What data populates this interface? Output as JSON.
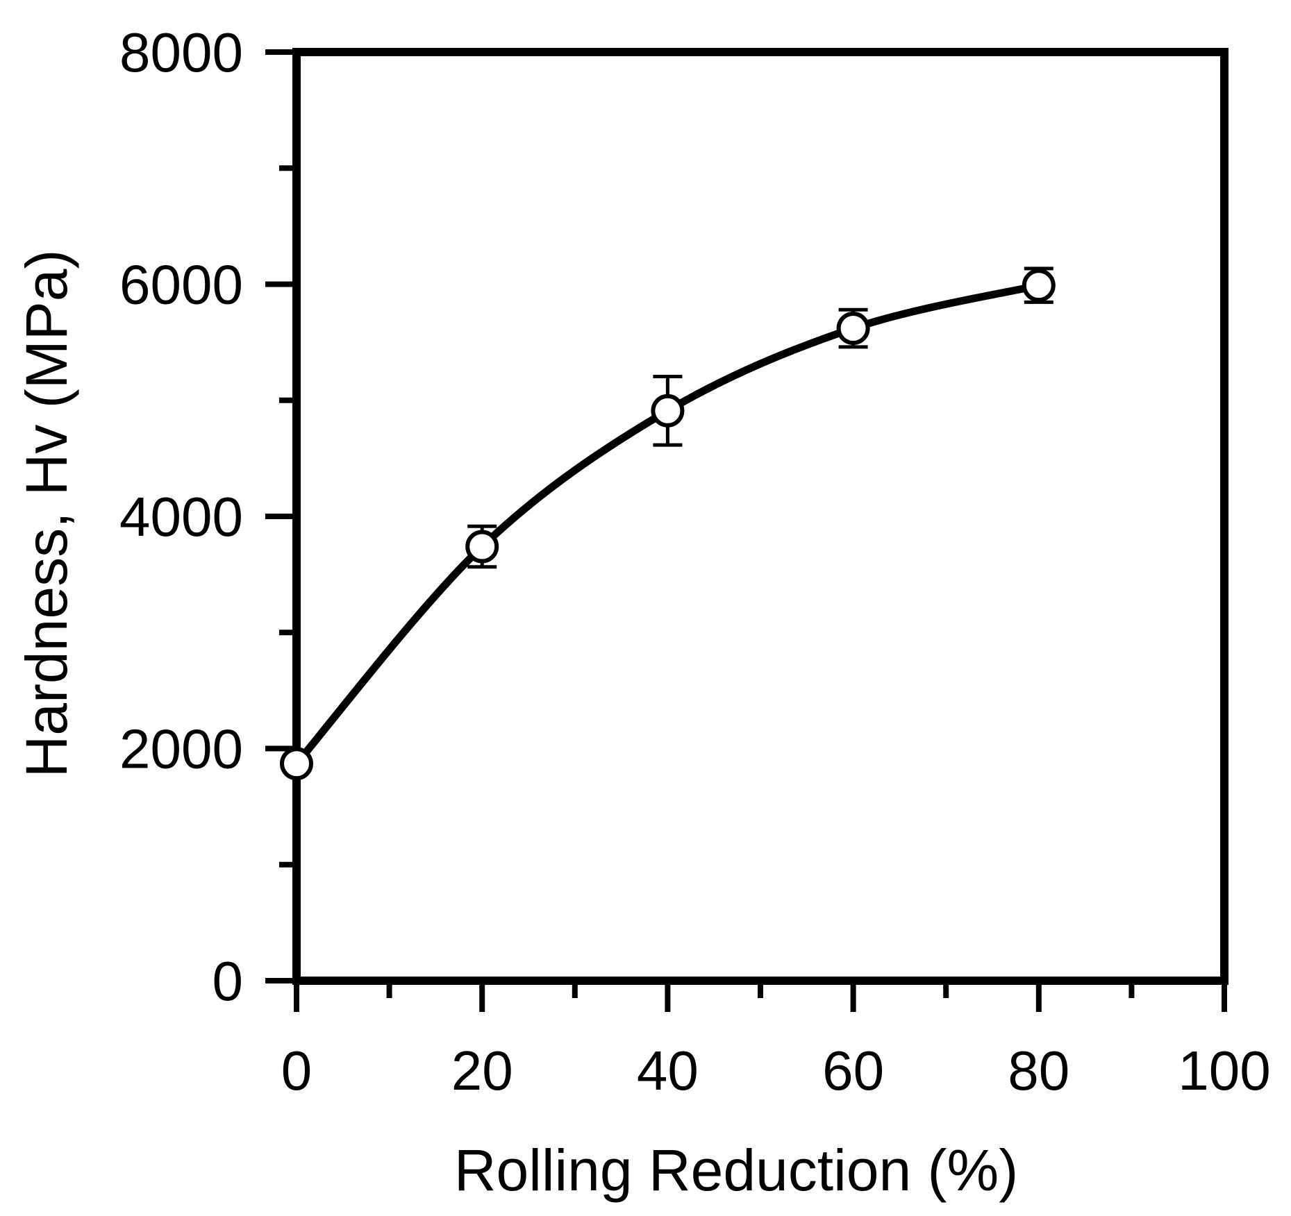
{
  "chart_data": {
    "type": "line",
    "title": "",
    "xlabel": "Rolling Reduction (%)",
    "ylabel": "Hardness, Hv (MPa)",
    "x": [
      0,
      20,
      40,
      60,
      80
    ],
    "y": [
      1870,
      3740,
      4910,
      5620,
      5990
    ],
    "y_err": [
      0,
      175,
      295,
      160,
      145
    ],
    "xlim": [
      0,
      100
    ],
    "ylim": [
      0,
      8000
    ],
    "x_major_ticks": [
      0,
      20,
      40,
      60,
      80,
      100
    ],
    "x_minor_ticks": [
      10,
      30,
      50,
      70,
      90
    ],
    "y_major_ticks": [
      0,
      2000,
      4000,
      6000,
      8000
    ],
    "y_minor_ticks": [
      1000,
      3000,
      5000,
      7000
    ],
    "x_tick_labels": [
      "0",
      "20",
      "40",
      "60",
      "80",
      "100"
    ],
    "y_tick_labels": [
      "0",
      "2000",
      "4000",
      "6000",
      "8000"
    ],
    "grid": "off",
    "legend": "none",
    "marker": "open-circle",
    "line_color": "#000000",
    "marker_fill": "#ffffff",
    "axis_color": "#000000",
    "background": "#ffffff"
  }
}
